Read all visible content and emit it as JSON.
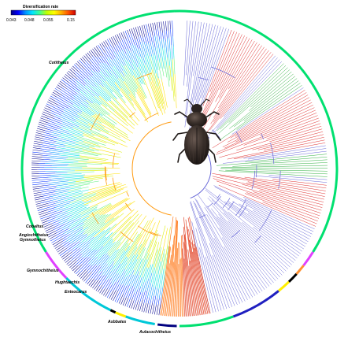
{
  "legend": {
    "title": "Diversification rate",
    "ticks": [
      "0.043",
      "0.048",
      "0.055",
      "0.15"
    ],
    "gradient_colors": [
      "#000080",
      "#0000ff",
      "#0090ff",
      "#00e5ff",
      "#40ff90",
      "#c0ff00",
      "#ffff00",
      "#ffb000",
      "#ff5000",
      "#cc0000"
    ]
  },
  "clades": [
    {
      "label": "Cotitheius",
      "color": "#00e070"
    },
    {
      "label": "Cobaltus",
      "color": "#e040ff"
    },
    {
      "label": "Angiochitheius",
      "color": "#e040ff"
    },
    {
      "label": "Gymnotheius",
      "color": "#e040ff"
    },
    {
      "label": "Gymnochitheius",
      "color": "#00d0d0"
    },
    {
      "label": "Hughtaechis",
      "color": "#000000"
    },
    {
      "label": "Enteocarus",
      "color": "#ffee00"
    },
    {
      "label": "Asbbates",
      "color": "#00e090"
    },
    {
      "label": "Aulacochitheius",
      "color": "#000080"
    }
  ],
  "right_ring_colors": {
    "main": "#00e070",
    "magenta": "#e040ff",
    "orange": "#ff9030",
    "black": "#000000",
    "yellow": "#ffee00",
    "blue": "#2020c0",
    "cyan": "#00c8d8"
  },
  "branch_colors": {
    "purple": "#6a6ad8",
    "red": "#e03030",
    "green": "#30b040"
  },
  "beetle": {
    "name": "beetle-photo",
    "body_color": "#2b2421"
  }
}
